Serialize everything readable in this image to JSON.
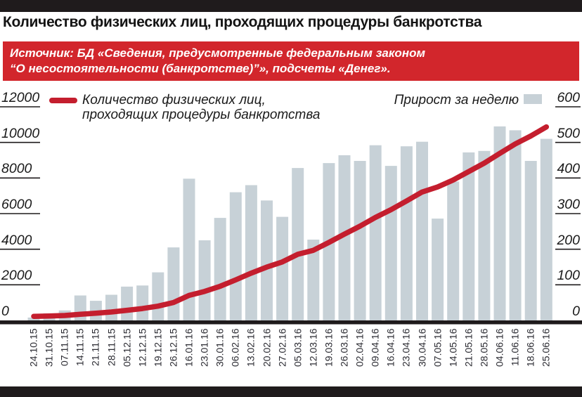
{
  "page": {
    "title": "Количество физических лиц, проходящих процедуры банкротства"
  },
  "source_box": {
    "line1": "Источник: БД «Сведения, предусмотренные федеральным законом",
    "line2": "“О несостоятельности (банкротстве)”», подсчеты «Денег»."
  },
  "legend": {
    "line_label_line1": "Количество физических лиц,",
    "line_label_line2": "проходящих процедуры банкротства",
    "bar_label": "Прирост за неделю"
  },
  "colors": {
    "line_red": "#c41e2e",
    "source_box_red": "#d2262c",
    "bar_gray": "#c7d1d7",
    "ink_black": "#1f1b1c"
  },
  "chart_data": {
    "type": "bar",
    "title": "Количество физических лиц, проходящих процедуры банкротства",
    "xlabel": "",
    "ylabel_left": "Количество физических лиц, проходящих процедуры банкротства",
    "ylabel_right": "Прирост за неделю",
    "grid": "tick-dashes-only",
    "legend_position": "top",
    "categories": [
      "24.10.15",
      "31.10.15",
      "07.11.15",
      "14.11.15",
      "21.11.15",
      "28.11.15",
      "05.12.15",
      "12.12.15",
      "19.12.15",
      "26.12.15",
      "16.01.16",
      "23.01.16",
      "30.01.16",
      "06.02.16",
      "13.02.16",
      "20.02.16",
      "27.02.16",
      "05.03.16",
      "12.03.16",
      "19.03.16",
      "26.03.16",
      "02.04.16",
      "09.04.16",
      "16.04.16",
      "23.04.16",
      "30.04.16",
      "07.05.16",
      "14.05.16",
      "21.05.16",
      "28.05.16",
      "04.06.16",
      "11.06.16",
      "18.06.16",
      "25.06.16"
    ],
    "series": [
      {
        "name": "Количество физических лиц, проходящих процедуры банкротства",
        "type": "line",
        "axis": "left",
        "color": "#c41e2e",
        "values": [
          150,
          170,
          198,
          268,
          323,
          395,
          490,
          588,
          723,
          928,
          1326,
          1551,
          1839,
          2199,
          2579,
          2916,
          3207,
          3635,
          3862,
          4304,
          4768,
          5216,
          5708,
          6142,
          6631,
          7133,
          7419,
          7809,
          8281,
          8757,
          9302,
          9836,
          10284,
          10794
        ]
      },
      {
        "name": "Прирост за неделю",
        "type": "bar",
        "axis": "right",
        "color": "#c7d1d7",
        "values": [
          8,
          20,
          28,
          70,
          55,
          72,
          95,
          98,
          135,
          205,
          398,
          225,
          288,
          360,
          380,
          337,
          291,
          428,
          227,
          442,
          464,
          448,
          492,
          434,
          489,
          502,
          286,
          390,
          472,
          476,
          545,
          534,
          448,
          510
        ]
      }
    ],
    "left_axis": {
      "min": 0,
      "max": 12000,
      "ticks": [
        12000,
        10000,
        8000,
        6000,
        4000,
        2000,
        0
      ]
    },
    "right_axis": {
      "min": 0,
      "max": 600,
      "ticks": [
        600,
        500,
        400,
        300,
        200,
        100,
        0
      ]
    }
  }
}
